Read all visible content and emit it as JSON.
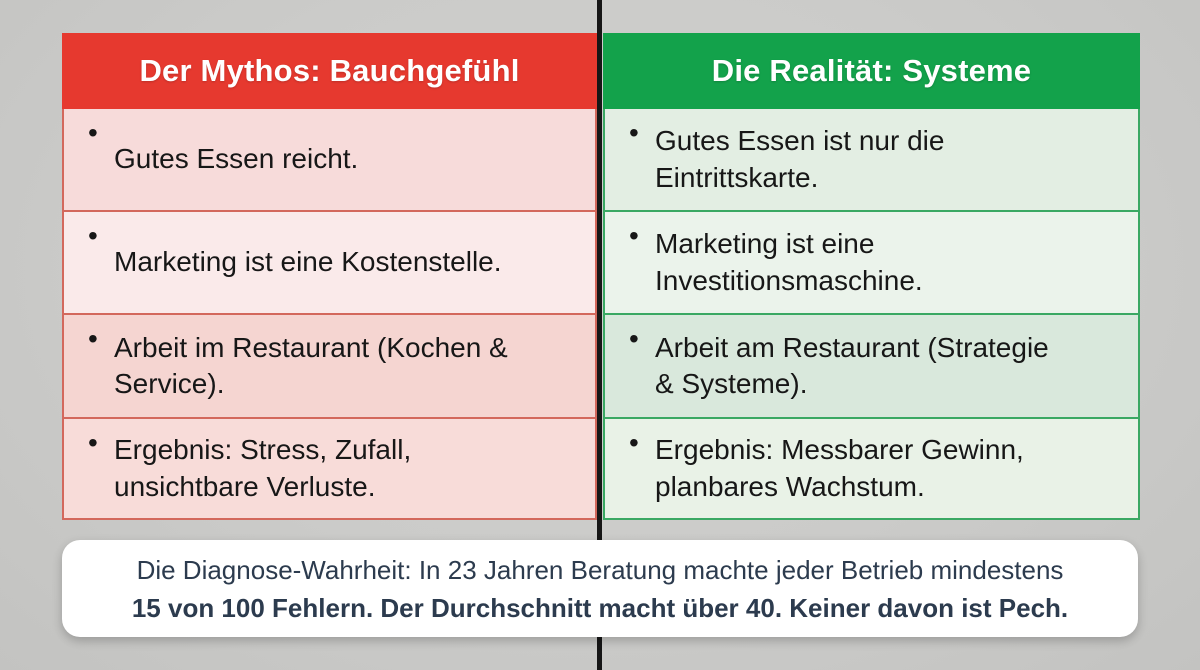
{
  "page": {
    "background_color": "#cbcbc9",
    "divider_color": "#161616"
  },
  "table": {
    "bullet": "•",
    "columns": [
      {
        "id": "myth",
        "header": "Der Mythos: Bauchgefühl",
        "header_bg": "#e6392f",
        "header_text_color": "#ffffff",
        "line_color": "#d3685c",
        "row_bgs": [
          "#f7dbda",
          "#faeaea",
          "#f5d5d1",
          "#f8dcd9"
        ],
        "items": [
          "Gutes Essen reicht.",
          "Marketing ist eine Kostenstelle.",
          "Arbeit im Restaurant (Kochen &\nService).",
          "Ergebnis: Stress, Zufall,\nunsichtbare Verluste."
        ]
      },
      {
        "id": "reality",
        "header": "Die Realität: Systeme",
        "header_bg": "#13a24b",
        "header_text_color": "#ffffff",
        "line_color": "#3aa863",
        "row_bgs": [
          "#e3eee3",
          "#ebf3eb",
          "#d9e8dc",
          "#e9f2e7"
        ],
        "items": [
          "Gutes Essen ist nur die\nEintrittskarte.",
          "Marketing ist eine\nInvestitionsmaschine.",
          "Arbeit am Restaurant (Strategie\n& Systeme).",
          "Ergebnis: Messbarer Gewinn,\nplanbares Wachstum."
        ]
      }
    ]
  },
  "callout": {
    "line1": "Die Diagnose-Wahrheit: In 23 Jahren Beratung machte jeder Betrieb mindestens",
    "line2": "15 von 100 Fehlern. Der Durchschnitt macht über 40. Keiner davon ist Pech.",
    "text_color": "#2c3b4e",
    "bg": "#ffffff"
  }
}
